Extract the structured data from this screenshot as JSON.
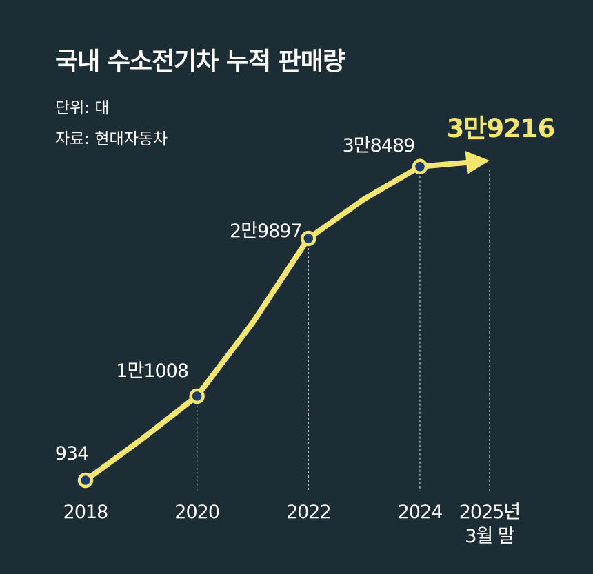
{
  "header": {
    "title": "국내 수소전기차 누적 판매량",
    "unit": "단위: 대",
    "source": "자료: 현대자동차"
  },
  "colors": {
    "background": "#1d2d36",
    "line": "#f4e56e",
    "marker_fill": "#1d3b6b",
    "highlight_text": "#f4e56e",
    "guide_line": "#b8c0c4"
  },
  "chart_data": {
    "type": "line",
    "title": "국내 수소전기차 누적 판매량",
    "unit": "단위: 대",
    "source": "자료: 현대자동차",
    "x_tick_labels": [
      [
        "2018"
      ],
      [
        "2020"
      ],
      [
        "2022"
      ],
      [
        "2024"
      ],
      [
        "2025년",
        "3월 말"
      ]
    ],
    "points": [
      {
        "x": 2018,
        "y": 934,
        "label": "934"
      },
      {
        "x": 2019,
        "y": 5800,
        "label": ""
      },
      {
        "x": 2020,
        "y": 11008,
        "label": "1만1008"
      },
      {
        "x": 2021,
        "y": 19800,
        "label": ""
      },
      {
        "x": 2022,
        "y": 29897,
        "label": "2만9897"
      },
      {
        "x": 2023,
        "y": 34600,
        "label": ""
      },
      {
        "x": 2024,
        "y": 38489,
        "label": "3만8489"
      },
      {
        "x": 2025.25,
        "y": 39216,
        "label": "3만9216"
      }
    ],
    "highlight_last": true,
    "grid": false,
    "axes_visible": false
  }
}
